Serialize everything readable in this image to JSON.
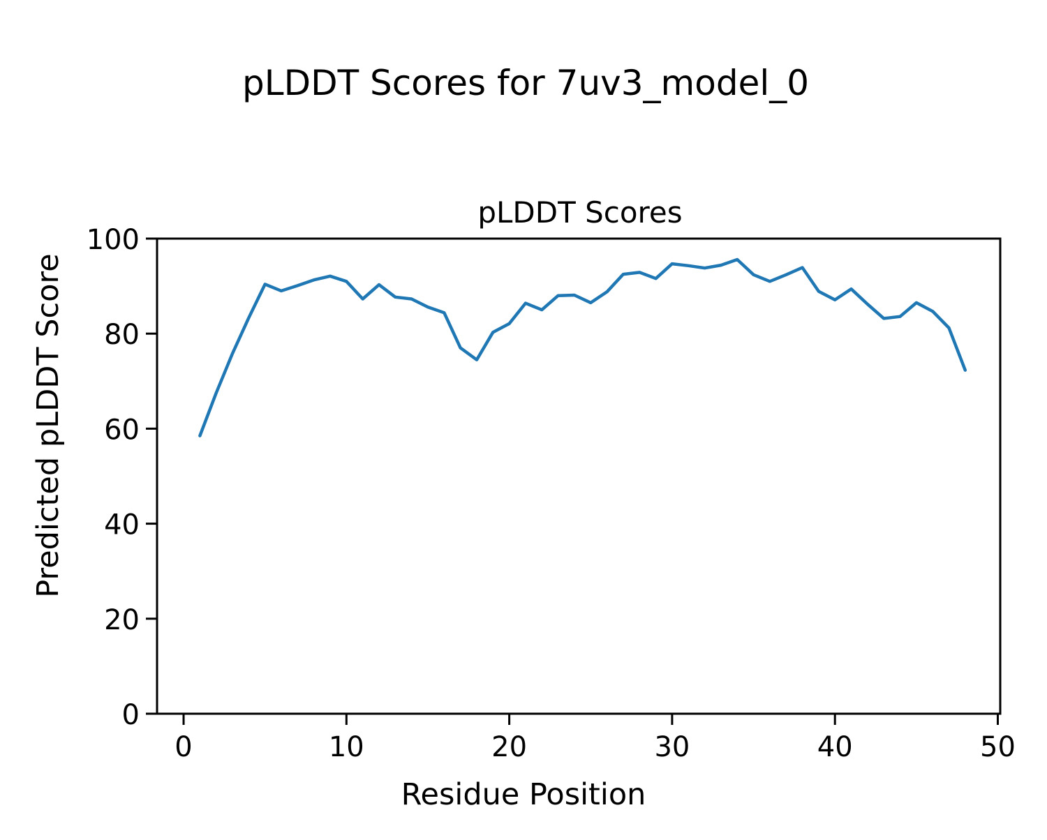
{
  "figure": {
    "suptitle": "pLDDT Scores for 7uv3_model_0",
    "background": "#ffffff",
    "text_color": "#000000"
  },
  "chart_data": {
    "type": "line",
    "title": "pLDDT Scores",
    "xlabel": "Residue Position",
    "ylabel": "Predicted pLDDT Score",
    "series": [
      {
        "name": "pLDDT",
        "color": "#1f77b4",
        "x": [
          1,
          2,
          3,
          4,
          5,
          6,
          7,
          8,
          9,
          10,
          11,
          12,
          13,
          14,
          15,
          16,
          17,
          18,
          19,
          20,
          21,
          22,
          23,
          24,
          25,
          26,
          27,
          28,
          29,
          30,
          31,
          32,
          33,
          34,
          35,
          36,
          37,
          38,
          39,
          40,
          41,
          42,
          43,
          44,
          45,
          46,
          47,
          48
        ],
        "values": [
          58.5,
          67.5,
          75.8,
          83.3,
          90.4,
          89.0,
          90.1,
          91.3,
          92.1,
          91.0,
          87.3,
          90.3,
          87.7,
          87.3,
          85.6,
          84.4,
          77.0,
          74.5,
          80.3,
          82.1,
          86.4,
          85.0,
          88.0,
          88.1,
          86.5,
          88.8,
          92.5,
          92.9,
          91.6,
          94.7,
          94.3,
          93.8,
          94.4,
          95.6,
          92.4,
          91.0,
          92.4,
          93.9,
          88.9,
          87.1,
          89.4,
          86.2,
          83.2,
          83.6,
          86.5,
          84.7,
          81.2,
          72.3
        ]
      }
    ],
    "xlim": [
      -1.63,
      50.15
    ],
    "ylim": [
      0,
      100
    ],
    "xticks": [
      0,
      10,
      20,
      30,
      40,
      50
    ],
    "yticks": [
      0,
      20,
      40,
      60,
      80,
      100
    ],
    "grid": false,
    "legend_position": "none"
  }
}
